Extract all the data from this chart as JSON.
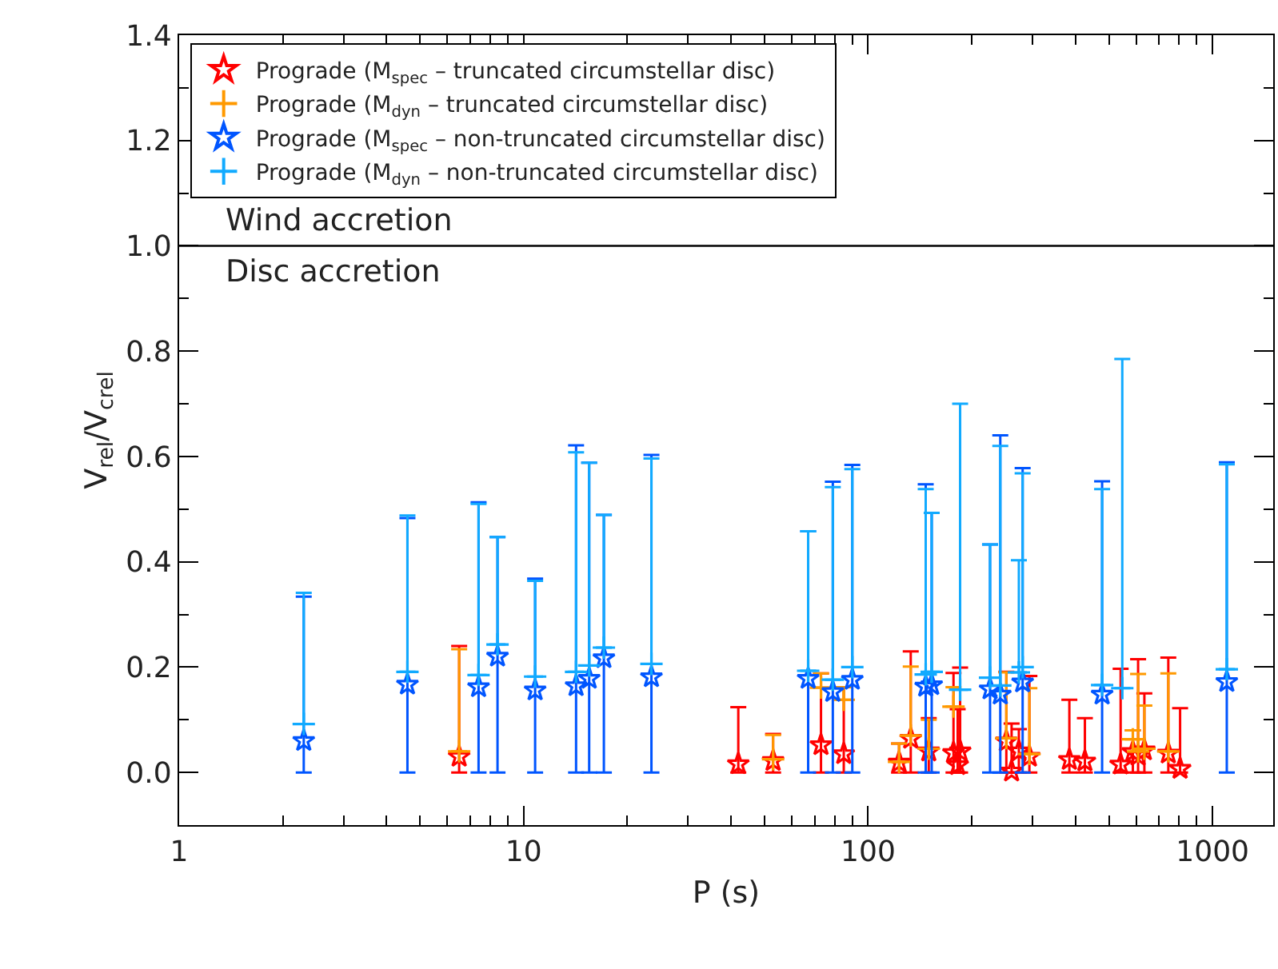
{
  "chart_data": {
    "type": "scatter",
    "xlabel": "P (s)",
    "ylabel": "V$_{rel}$/V$_{crel}$",
    "log": "x",
    "xlim": [
      1,
      1500
    ],
    "xticks": [
      1,
      10,
      100,
      1000
    ],
    "ylim": [
      -0.1,
      1.4
    ],
    "yticks": [
      {
        "value": 0,
        "label": "0.0"
      },
      {
        "value": 0.2,
        "label": "0.2"
      },
      {
        "value": 0.4,
        "label": "0.4"
      },
      {
        "value": 0.6,
        "label": "0.6"
      },
      {
        "value": 0.8,
        "label": "0.8"
      },
      {
        "value": 1.0,
        "label": "1.0"
      },
      {
        "value": 1.2,
        "label": "1.2"
      },
      {
        "value": 1.4,
        "label": "1.4"
      }
    ],
    "legend": "top left",
    "ref_lines": [
      {
        "axis": "y",
        "value": 1.0,
        "color": "#000000",
        "line_style": "solid"
      }
    ],
    "annotations": [
      "Wind accretion",
      "Disc accretion"
    ],
    "series": [
      {
        "name": "Prograde (M$_{spec}$ – truncated circumstellar disc)",
        "color": "#ff0000",
        "marker": "star",
        "x": [
          6.5,
          42,
          53,
          73,
          85,
          123,
          133,
          150,
          177,
          182,
          185,
          252,
          261,
          274,
          294,
          384,
          426,
          541,
          587,
          608,
          634,
          744,
          805
        ],
        "values": [
          0.03,
          0.016,
          0.022,
          0.052,
          0.035,
          0.019,
          0.064,
          0.04,
          0.037,
          0.014,
          0.04,
          0.059,
          0.002,
          0.04,
          0.03,
          0.024,
          0.021,
          0.015,
          0.039,
          0.032,
          0.042,
          0.036,
          0.007
        ],
        "errors": [
          [
            0,
            0.24
          ],
          [
            0,
            0.124
          ],
          [
            0,
            0.073
          ],
          [
            0,
            0.188
          ],
          [
            0,
            0.162
          ],
          [
            0,
            0.055
          ],
          [
            0,
            0.23
          ],
          [
            0,
            0.103
          ],
          [
            0,
            0.189
          ],
          [
            0,
            0.12
          ],
          [
            0,
            0.199
          ],
          [
            0,
            0.191
          ],
          [
            0,
            0.093
          ],
          [
            0,
            0.082
          ],
          [
            0,
            0.183
          ],
          [
            0,
            0.138
          ],
          [
            0,
            0.103
          ],
          [
            0,
            0.197
          ],
          [
            0,
            0.08
          ],
          [
            0,
            0.215
          ],
          [
            0,
            0.15
          ],
          [
            0,
            0.218
          ],
          [
            0,
            0.122
          ]
        ]
      },
      {
        "name": "Prograde (M$_{dyn}$ – truncated circumstellar disc)",
        "color": "#ff9900",
        "marker": "cross",
        "x": [
          6.5,
          53,
          73,
          85,
          123,
          133,
          150,
          177,
          252,
          294,
          587,
          608,
          634,
          744
        ],
        "values": [
          0.04,
          0.025,
          0.161,
          0.138,
          0.02,
          0.07,
          0.045,
          0.125,
          0.065,
          0.035,
          0.063,
          0.04,
          0.045,
          0.04
        ],
        "errors": [
          [
            0.04,
            0.234
          ],
          [
            0.025,
            0.071
          ],
          [
            0.161,
            0.188
          ],
          [
            0.138,
            0.162
          ],
          [
            0.02,
            0.055
          ],
          [
            0.07,
            0.201
          ],
          [
            0.045,
            0.1
          ],
          [
            0.125,
            0.162
          ],
          [
            0.065,
            0.19
          ],
          [
            0.035,
            0.16
          ],
          [
            0.063,
            0.08
          ],
          [
            0.04,
            0.187
          ],
          [
            0.045,
            0.127
          ],
          [
            0.04,
            0.188
          ]
        ]
      },
      {
        "name": "Prograde (M$_{spec}$ – non-truncated circumstellar disc)",
        "color": "#0055ff",
        "marker": "star",
        "x": [
          2.3,
          4.6,
          7.4,
          8.4,
          10.8,
          14.2,
          15.5,
          17.1,
          23.5,
          67,
          79,
          90,
          147,
          153,
          226,
          242,
          281,
          478,
          1100
        ],
        "values": [
          0.06,
          0.167,
          0.162,
          0.22,
          0.156,
          0.164,
          0.178,
          0.217,
          0.181,
          0.178,
          0.153,
          0.176,
          0.163,
          0.166,
          0.158,
          0.148,
          0.171,
          0.148,
          0.172
        ],
        "errors": [
          [
            0,
            0.334
          ],
          [
            0,
            0.483
          ],
          [
            0,
            0.513
          ],
          [
            0,
            0.447
          ],
          [
            0,
            0.368
          ],
          [
            0,
            0.621
          ],
          [
            0,
            0.588
          ],
          [
            0,
            0.489
          ],
          [
            0,
            0.603
          ],
          [
            0,
            0.458
          ],
          [
            0,
            0.552
          ],
          [
            0,
            0.584
          ],
          [
            0,
            0.547
          ],
          [
            0,
            0.493
          ],
          [
            0,
            0.433
          ],
          [
            0,
            0.64
          ],
          [
            0,
            0.578
          ],
          [
            0,
            0.553
          ],
          [
            0,
            0.589
          ]
        ]
      },
      {
        "name": "Prograde (M$_{dyn}$ – non-truncated circumstellar disc)",
        "color": "#11aaff",
        "marker": "cross",
        "x": [
          2.3,
          4.6,
          7.4,
          8.4,
          10.8,
          14.2,
          15.5,
          17.1,
          23.5,
          67,
          79,
          90,
          147,
          153,
          185,
          226,
          242,
          274,
          281,
          478,
          547,
          1100
        ],
        "values": [
          0.092,
          0.191,
          0.185,
          0.243,
          0.182,
          0.191,
          0.203,
          0.237,
          0.206,
          0.193,
          0.176,
          0.2,
          0.186,
          0.191,
          0.157,
          0.18,
          0.165,
          0.19,
          0.2,
          0.166,
          0.16,
          0.196
        ],
        "errors": [
          [
            0.092,
            0.341
          ],
          [
            0.191,
            0.488
          ],
          [
            0.185,
            0.51
          ],
          [
            0.243,
            0.447
          ],
          [
            0.182,
            0.364
          ],
          [
            0.191,
            0.608
          ],
          [
            0.203,
            0.588
          ],
          [
            0.237,
            0.489
          ],
          [
            0.206,
            0.596
          ],
          [
            0.193,
            0.458
          ],
          [
            0.176,
            0.542
          ],
          [
            0.2,
            0.576
          ],
          [
            0.186,
            0.538
          ],
          [
            0.191,
            0.493
          ],
          [
            0.157,
            0.7
          ],
          [
            0.18,
            0.433
          ],
          [
            0.165,
            0.62
          ],
          [
            0.19,
            0.403
          ],
          [
            0.2,
            0.568
          ],
          [
            0.166,
            0.538
          ],
          [
            0.16,
            0.785
          ],
          [
            0.196,
            0.585
          ]
        ]
      }
    ]
  }
}
